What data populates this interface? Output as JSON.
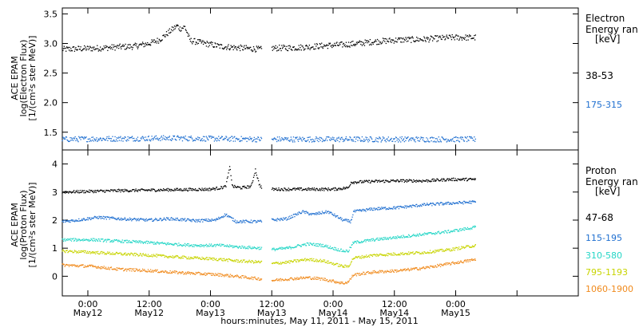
{
  "colors": {
    "black": "#000000",
    "blue": "#1f6fd0",
    "cyan": "#24d6c6",
    "yellow": "#c8d400",
    "orange": "#f08a1c"
  },
  "chart_data": [
    {
      "type": "scatter",
      "panel": "electron",
      "ylabel_lines": [
        "ACE EPAM",
        "log(Electron Flux)",
        "[1/(cm²s ster MeV)]"
      ],
      "legend_header": [
        "Electron",
        "Energy ran",
        "[keV]"
      ],
      "ylim": [
        1.2,
        3.6
      ],
      "yticks": [
        1.5,
        2.0,
        2.5,
        3.0,
        3.5
      ],
      "ytick_labels": [
        "1.5",
        "2.0",
        "2.5",
        "3.0",
        "3.5"
      ],
      "x_unit": "hours since 2011-05-11 00:00",
      "xlim": [
        19,
        120
      ],
      "data_gap": [
        58,
        60
      ],
      "series": [
        {
          "name": "38-53",
          "color": "black",
          "spread": 0.05,
          "points": [
            [
              19,
              2.9
            ],
            [
              22,
              2.91
            ],
            [
              26,
              2.92
            ],
            [
              30,
              2.94
            ],
            [
              33,
              2.95
            ],
            [
              36,
              3.0
            ],
            [
              38,
              3.06
            ],
            [
              40,
              3.2
            ],
            [
              41.5,
              3.3
            ],
            [
              42,
              3.25
            ],
            [
              43,
              3.28
            ],
            [
              44,
              3.05
            ],
            [
              47,
              3.0
            ],
            [
              50,
              2.95
            ],
            [
              53,
              2.93
            ],
            [
              58,
              2.9
            ],
            [
              60,
              2.92
            ],
            [
              65,
              2.93
            ],
            [
              70,
              2.96
            ],
            [
              74,
              2.98
            ],
            [
              77,
              3.0
            ],
            [
              80,
              3.03
            ],
            [
              85,
              3.06
            ],
            [
              90,
              3.07
            ],
            [
              95,
              3.1
            ],
            [
              100,
              3.1
            ]
          ]
        },
        {
          "name": "175-315",
          "color": "blue",
          "spread": 0.045,
          "points": [
            [
              19,
              1.38
            ],
            [
              40,
              1.4
            ],
            [
              58,
              1.38
            ],
            [
              60,
              1.38
            ],
            [
              100,
              1.38
            ]
          ]
        }
      ]
    },
    {
      "type": "scatter",
      "panel": "proton",
      "ylabel_lines": [
        "ACE EPAM",
        "log(Proton Flux)",
        "[1/(cm²s ster MeV)]"
      ],
      "legend_header": [
        "Proton",
        "Energy ran",
        "[keV]"
      ],
      "ylim": [
        -0.7,
        4.5
      ],
      "yticks": [
        0,
        1,
        2,
        3,
        4
      ],
      "ytick_labels": [
        "0",
        "1",
        "2",
        "3",
        "4"
      ],
      "x_unit": "hours since 2011-05-11 00:00",
      "xlim": [
        19,
        120
      ],
      "xticks": [
        24,
        36,
        48,
        60,
        72,
        84,
        96,
        108,
        120
      ],
      "xtick_labels": [
        [
          "0:00",
          "May12"
        ],
        [
          "12:00",
          "May12"
        ],
        [
          "0:00",
          "May13"
        ],
        [
          "12:00",
          "May13"
        ],
        [
          "0:00",
          "May14"
        ],
        [
          "12:00",
          "May14"
        ],
        [
          "0:00",
          "May15"
        ],
        [
          "",
          ""
        ],
        [
          "",
          ""
        ]
      ],
      "xlabel": "hours:minutes, May 11, 2011 - May 15, 2011",
      "data_gap": [
        58,
        60
      ],
      "series": [
        {
          "name": "47-68",
          "color": "black",
          "spread": 0.05,
          "points": [
            [
              19,
              3.0
            ],
            [
              30,
              3.05
            ],
            [
              40,
              3.08
            ],
            [
              48,
              3.1
            ],
            [
              50,
              3.15
            ],
            [
              51,
              3.2
            ],
            [
              51.8,
              3.9
            ],
            [
              52.3,
              3.2
            ],
            [
              54,
              3.15
            ],
            [
              56,
              3.2
            ],
            [
              56.8,
              3.8
            ],
            [
              57.5,
              3.3
            ],
            [
              58,
              3.15
            ],
            [
              60,
              3.1
            ],
            [
              72,
              3.1
            ],
            [
              75,
              3.15
            ],
            [
              75.5,
              3.35
            ],
            [
              80,
              3.38
            ],
            [
              85,
              3.4
            ],
            [
              90,
              3.4
            ],
            [
              95,
              3.45
            ],
            [
              100,
              3.45
            ]
          ]
        },
        {
          "name": "115-195",
          "color": "blue",
          "spread": 0.05,
          "points": [
            [
              19,
              1.95
            ],
            [
              22,
              2.0
            ],
            [
              26,
              2.1
            ],
            [
              30,
              2.05
            ],
            [
              36,
              2.0
            ],
            [
              40,
              2.05
            ],
            [
              45,
              1.98
            ],
            [
              49,
              2.0
            ],
            [
              51,
              2.2
            ],
            [
              53,
              1.95
            ],
            [
              58,
              1.95
            ],
            [
              60,
              2.0
            ],
            [
              63,
              2.05
            ],
            [
              66,
              2.3
            ],
            [
              68,
              2.2
            ],
            [
              71,
              2.3
            ],
            [
              74,
              2.0
            ],
            [
              75.5,
              1.95
            ],
            [
              76,
              2.3
            ],
            [
              80,
              2.4
            ],
            [
              85,
              2.45
            ],
            [
              90,
              2.55
            ],
            [
              95,
              2.6
            ],
            [
              100,
              2.65
            ]
          ]
        },
        {
          "name": "310-580",
          "color": "cyan",
          "spread": 0.05,
          "points": [
            [
              19,
              1.3
            ],
            [
              25,
              1.3
            ],
            [
              30,
              1.25
            ],
            [
              36,
              1.2
            ],
            [
              40,
              1.15
            ],
            [
              45,
              1.1
            ],
            [
              50,
              1.1
            ],
            [
              53,
              1.05
            ],
            [
              58,
              1.0
            ],
            [
              60,
              0.95
            ],
            [
              63,
              1.0
            ],
            [
              67,
              1.15
            ],
            [
              70,
              1.1
            ],
            [
              74,
              0.9
            ],
            [
              75,
              0.9
            ],
            [
              76,
              1.2
            ],
            [
              80,
              1.3
            ],
            [
              85,
              1.4
            ],
            [
              90,
              1.5
            ],
            [
              95,
              1.6
            ],
            [
              100,
              1.75
            ]
          ]
        },
        {
          "name": "795-1193",
          "color": "yellow",
          "spread": 0.05,
          "points": [
            [
              19,
              0.9
            ],
            [
              25,
              0.85
            ],
            [
              30,
              0.8
            ],
            [
              36,
              0.75
            ],
            [
              40,
              0.7
            ],
            [
              45,
              0.65
            ],
            [
              50,
              0.6
            ],
            [
              53,
              0.55
            ],
            [
              58,
              0.5
            ],
            [
              60,
              0.45
            ],
            [
              63,
              0.5
            ],
            [
              67,
              0.6
            ],
            [
              70,
              0.55
            ],
            [
              74,
              0.35
            ],
            [
              75,
              0.35
            ],
            [
              76,
              0.65
            ],
            [
              80,
              0.75
            ],
            [
              85,
              0.8
            ],
            [
              90,
              0.85
            ],
            [
              95,
              0.95
            ],
            [
              100,
              1.1
            ]
          ]
        },
        {
          "name": "1060-1900",
          "color": "orange",
          "spread": 0.05,
          "points": [
            [
              19,
              0.4
            ],
            [
              25,
              0.35
            ],
            [
              30,
              0.25
            ],
            [
              36,
              0.2
            ],
            [
              40,
              0.15
            ],
            [
              45,
              0.1
            ],
            [
              50,
              0.05
            ],
            [
              53,
              0.0
            ],
            [
              58,
              -0.1
            ],
            [
              60,
              -0.15
            ],
            [
              63,
              -0.1
            ],
            [
              67,
              -0.05
            ],
            [
              70,
              -0.1
            ],
            [
              74,
              -0.25
            ],
            [
              75,
              -0.2
            ],
            [
              76,
              0.05
            ],
            [
              80,
              0.15
            ],
            [
              85,
              0.2
            ],
            [
              90,
              0.3
            ],
            [
              95,
              0.45
            ],
            [
              100,
              0.6
            ]
          ]
        }
      ]
    }
  ]
}
